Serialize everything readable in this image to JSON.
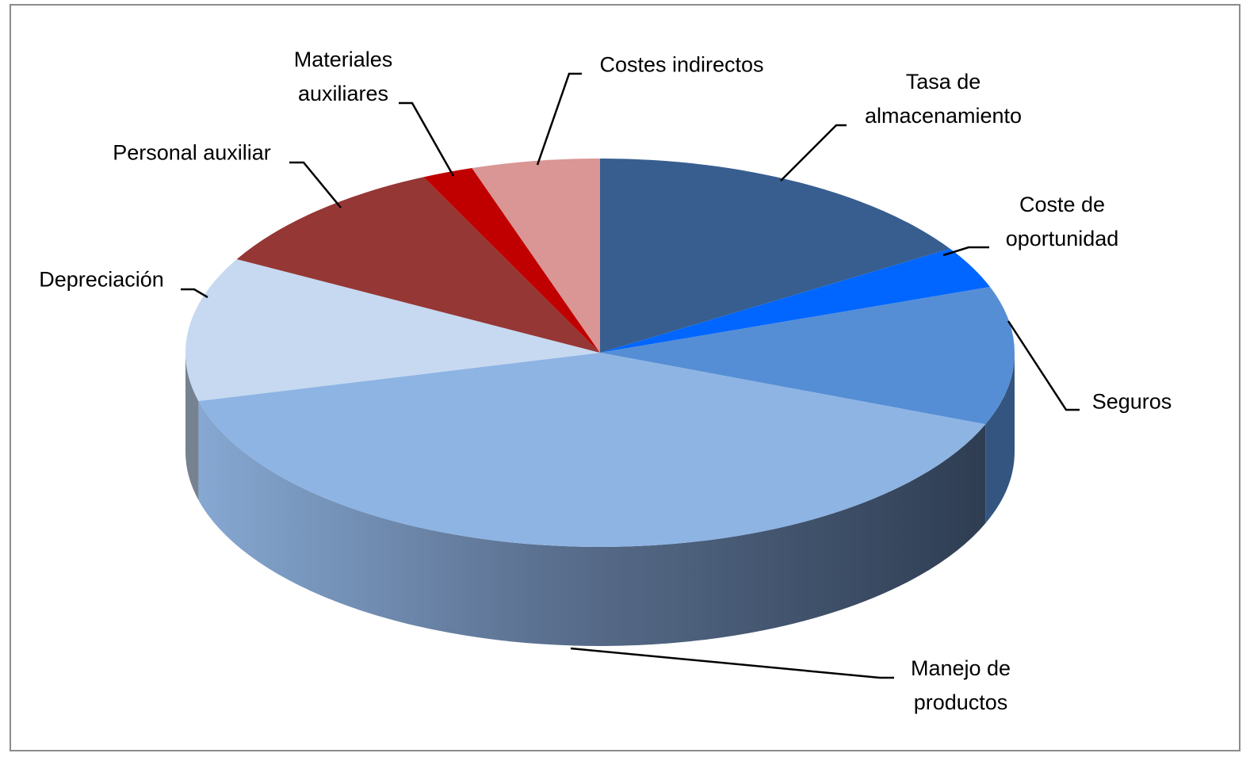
{
  "chart_data": {
    "type": "pie3d",
    "categories": [
      "Tasa de almacenamiento",
      "Coste de oportunidad",
      "Seguros",
      "Manejo de productos",
      "Depreciación",
      "Personal auxiliar",
      "Materiales auxiliares",
      "Costes indirectos"
    ],
    "values": [
      16,
      3.5,
      11.5,
      40,
      12,
      10,
      2,
      5
    ],
    "colors": [
      "#375e8f",
      "#0066ff",
      "#558ed5",
      "#8eb4e3",
      "#c6d9f1",
      "#953735",
      "#c00000",
      "#d99694"
    ]
  }
}
